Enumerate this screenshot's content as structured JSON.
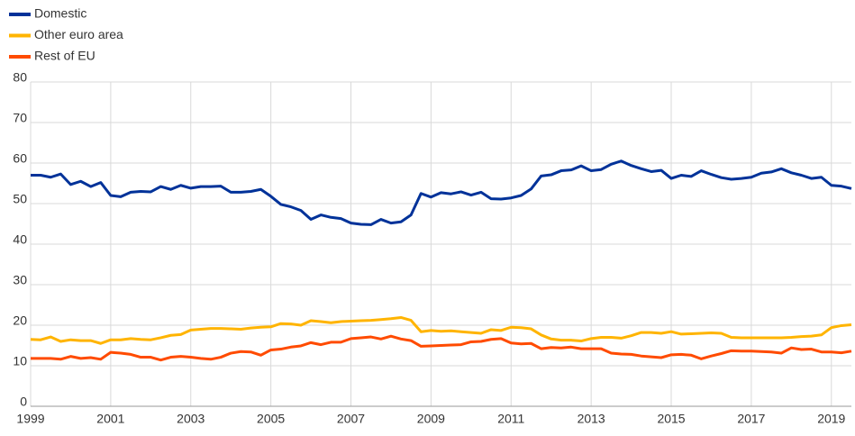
{
  "chart_data": {
    "type": "line",
    "x": [
      1999,
      1999.25,
      1999.5,
      1999.75,
      2000,
      2000.25,
      2000.5,
      2000.75,
      2001,
      2001.25,
      2001.5,
      2001.75,
      2002,
      2002.25,
      2002.5,
      2002.75,
      2003,
      2003.25,
      2003.5,
      2003.75,
      2004,
      2004.25,
      2004.5,
      2004.75,
      2005,
      2005.25,
      2005.5,
      2005.75,
      2006,
      2006.25,
      2006.5,
      2006.75,
      2007,
      2007.25,
      2007.5,
      2007.75,
      2008,
      2008.25,
      2008.5,
      2008.75,
      2009,
      2009.25,
      2009.5,
      2009.75,
      2010,
      2010.25,
      2010.5,
      2010.75,
      2011,
      2011.25,
      2011.5,
      2011.75,
      2012,
      2012.25,
      2012.5,
      2012.75,
      2013,
      2013.25,
      2013.5,
      2013.75,
      2014,
      2014.25,
      2014.5,
      2014.75,
      2015,
      2015.25,
      2015.5,
      2015.75,
      2016,
      2016.25,
      2016.5,
      2016.75,
      2017,
      2017.25,
      2017.5,
      2017.75,
      2018,
      2018.25,
      2018.5,
      2018.75,
      2019,
      2019.25,
      2019.5
    ],
    "series": [
      {
        "name": "Domestic",
        "color": "#003299",
        "values": [
          57,
          57,
          56.5,
          57.3,
          54.7,
          55.5,
          54.2,
          55.2,
          52,
          51.7,
          52.8,
          53,
          52.9,
          54.2,
          53.5,
          54.5,
          53.8,
          54.2,
          54.2,
          54.3,
          52.8,
          52.8,
          53,
          53.5,
          51.8,
          49.8,
          49.2,
          48.3,
          46.1,
          47.2,
          46.6,
          46.3,
          45.2,
          44.9,
          44.8,
          46.1,
          45.2,
          45.5,
          47.2,
          52.5,
          51.6,
          52.7,
          52.4,
          52.9,
          52.1,
          52.8,
          51.2,
          51.1,
          51.4,
          52,
          53.6,
          56.8,
          57.1,
          58.1,
          58.3,
          59.3,
          58.1,
          58.4,
          59.7,
          60.5,
          59.4,
          58.6,
          57.9,
          58.2,
          56.2,
          57,
          56.7,
          58.1,
          57.2,
          56.4,
          56,
          56.2,
          56.5,
          57.5,
          57.8,
          58.6,
          57.6,
          57,
          56.2,
          56.5,
          54.5,
          54.3,
          53.7
        ]
      },
      {
        "name": "Other euro area",
        "color": "#ffb400",
        "values": [
          16.5,
          16.4,
          17.1,
          16,
          16.4,
          16.2,
          16.2,
          15.5,
          16.4,
          16.4,
          16.7,
          16.5,
          16.4,
          16.9,
          17.5,
          17.7,
          18.8,
          19,
          19.2,
          19.2,
          19.1,
          19,
          19.3,
          19.5,
          19.6,
          20.4,
          20.3,
          20,
          21.1,
          20.9,
          20.6,
          20.9,
          21,
          21.1,
          21.2,
          21.4,
          21.6,
          21.9,
          21.2,
          18.4,
          18.7,
          18.5,
          18.6,
          18.4,
          18.2,
          18,
          18.9,
          18.7,
          19.5,
          19.4,
          19.1,
          17.6,
          16.6,
          16.3,
          16.3,
          16.1,
          16.7,
          17,
          17,
          16.8,
          17.4,
          18.2,
          18.2,
          18,
          18.4,
          17.8,
          17.9,
          18,
          18.1,
          18,
          17,
          16.9,
          16.9,
          16.9,
          16.9,
          16.9,
          17,
          17.2,
          17.3,
          17.6,
          19.4,
          19.9,
          20.1
        ]
      },
      {
        "name": "Rest of EU",
        "color": "#ff4b00",
        "values": [
          11.8,
          11.8,
          11.8,
          11.6,
          12.3,
          11.8,
          12,
          11.6,
          13.3,
          13.1,
          12.8,
          12.1,
          12.1,
          11.4,
          12.1,
          12.3,
          12.1,
          11.8,
          11.6,
          12.1,
          13.1,
          13.5,
          13.4,
          12.6,
          13.9,
          14.1,
          14.6,
          14.9,
          15.7,
          15.2,
          15.8,
          15.8,
          16.7,
          16.9,
          17.1,
          16.6,
          17.3,
          16.6,
          16.2,
          14.8,
          14.9,
          15,
          15.1,
          15.2,
          15.9,
          16,
          16.5,
          16.7,
          15.6,
          15.4,
          15.5,
          14.2,
          14.5,
          14.4,
          14.6,
          14.2,
          14.2,
          14.2,
          13.1,
          12.9,
          12.8,
          12.4,
          12.2,
          12,
          12.7,
          12.8,
          12.6,
          11.7,
          12.4,
          13,
          13.7,
          13.6,
          13.6,
          13.5,
          13.4,
          13.1,
          14.4,
          14,
          14.1,
          13.4,
          13.4,
          13.2,
          13.6
        ]
      }
    ],
    "xlim": [
      1999,
      2019.5
    ],
    "xticks": [
      1999,
      2001,
      2003,
      2005,
      2007,
      2009,
      2011,
      2013,
      2015,
      2017,
      2019
    ],
    "ylim": [
      0,
      80
    ],
    "yticks": [
      0,
      10,
      20,
      30,
      40,
      50,
      60,
      70,
      80
    ],
    "grid": true,
    "legend": "top-left"
  }
}
